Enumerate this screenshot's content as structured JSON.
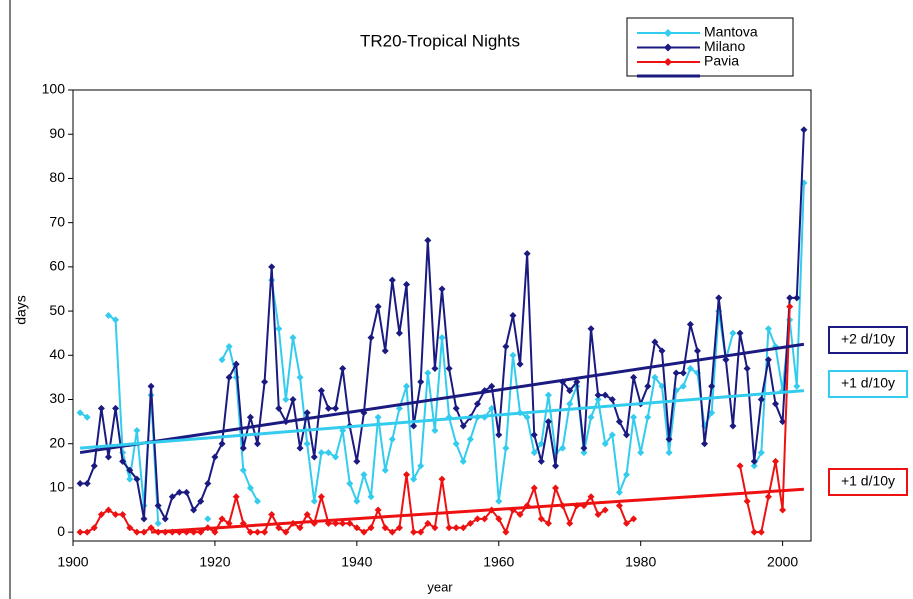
{
  "chart_data": {
    "type": "line",
    "title": "TR20-Tropical Nights",
    "x_label": "year",
    "y_label": "days",
    "xlim": [
      1900,
      2004
    ],
    "ylim": [
      -2,
      100
    ],
    "xticks": [
      1900,
      1920,
      1940,
      1960,
      1980,
      2000
    ],
    "yticks": [
      0,
      10,
      20,
      30,
      40,
      50,
      60,
      70,
      80,
      90,
      100
    ],
    "grid": false,
    "legend": "top-right",
    "x": [
      1901,
      1902,
      1903,
      1904,
      1905,
      1906,
      1907,
      1908,
      1909,
      1910,
      1911,
      1912,
      1913,
      1914,
      1915,
      1916,
      1917,
      1918,
      1919,
      1920,
      1921,
      1922,
      1923,
      1924,
      1925,
      1926,
      1927,
      1928,
      1929,
      1930,
      1931,
      1932,
      1933,
      1934,
      1935,
      1936,
      1937,
      1938,
      1939,
      1940,
      1941,
      1942,
      1943,
      1944,
      1945,
      1946,
      1947,
      1948,
      1949,
      1950,
      1951,
      1952,
      1953,
      1954,
      1955,
      1956,
      1957,
      1958,
      1959,
      1960,
      1961,
      1962,
      1963,
      1964,
      1965,
      1966,
      1967,
      1968,
      1969,
      1970,
      1971,
      1972,
      1973,
      1974,
      1975,
      1976,
      1977,
      1978,
      1979,
      1980,
      1981,
      1982,
      1983,
      1984,
      1985,
      1986,
      1987,
      1988,
      1989,
      1990,
      1991,
      1992,
      1993,
      1994,
      1995,
      1996,
      1997,
      1998,
      1999,
      2000,
      2001,
      2002,
      2003
    ],
    "series": [
      {
        "name": "Mantova",
        "color": "#33ccee",
        "values": [
          27,
          26,
          null,
          null,
          49,
          48,
          18,
          12,
          23,
          6,
          31,
          2,
          null,
          null,
          null,
          null,
          null,
          null,
          3,
          null,
          39,
          42,
          35,
          14,
          10,
          7,
          null,
          57,
          46,
          30,
          44,
          35,
          20,
          7,
          18,
          18,
          17,
          23,
          11,
          7,
          13,
          8,
          26,
          14,
          21,
          28,
          33,
          12,
          15,
          36,
          23,
          44,
          26,
          20,
          16,
          21,
          26,
          26,
          28,
          7,
          19,
          40,
          27,
          26,
          18,
          20,
          31,
          18,
          19,
          29,
          33,
          18,
          26,
          30,
          20,
          22,
          9,
          13,
          26,
          18,
          26,
          35,
          33,
          18,
          32,
          33,
          37,
          36,
          24,
          27,
          50,
          39,
          45,
          null,
          null,
          15,
          18,
          46,
          42,
          32,
          48,
          33,
          79
        ]
      },
      {
        "name": "Milano",
        "color": "#1a1a80",
        "values": [
          11,
          11,
          15,
          28,
          17,
          28,
          16,
          14,
          12,
          3,
          33,
          6,
          3,
          8,
          9,
          9,
          5,
          7,
          11,
          17,
          20,
          35,
          38,
          19,
          26,
          20,
          34,
          60,
          28,
          25,
          30,
          19,
          27,
          17,
          32,
          28,
          28,
          37,
          24,
          16,
          27,
          44,
          51,
          41,
          57,
          45,
          56,
          24,
          34,
          66,
          37,
          55,
          37,
          28,
          24,
          26,
          29,
          32,
          33,
          22,
          42,
          49,
          38,
          63,
          22,
          16,
          25,
          15,
          34,
          32,
          34,
          19,
          46,
          31,
          31,
          30,
          25,
          22,
          35,
          29,
          33,
          43,
          41,
          21,
          36,
          36,
          47,
          41,
          20,
          33,
          53,
          39,
          24,
          45,
          37,
          16,
          30,
          39,
          29,
          25,
          53,
          53,
          91
        ]
      },
      {
        "name": "Pavia",
        "color": "#ee1111",
        "values": [
          0,
          0,
          1,
          4,
          5,
          4,
          4,
          1,
          0,
          0,
          1,
          0,
          0,
          0,
          0,
          0,
          0,
          0,
          1,
          0,
          3,
          2,
          8,
          2,
          0,
          0,
          0,
          4,
          1,
          0,
          2,
          1,
          4,
          2,
          8,
          2,
          2,
          2,
          2,
          1,
          0,
          1,
          5,
          1,
          0,
          1,
          13,
          0,
          0,
          2,
          1,
          12,
          1,
          1,
          1,
          2,
          3,
          3,
          5,
          3,
          0,
          5,
          4,
          6,
          10,
          3,
          2,
          10,
          6,
          2,
          6,
          6,
          8,
          4,
          5,
          null,
          6,
          2,
          3,
          null,
          null,
          null,
          null,
          null,
          null,
          null,
          null,
          null,
          null,
          null,
          null,
          null,
          null,
          15,
          7,
          0,
          0,
          8,
          16,
          5,
          51,
          null,
          null
        ]
      }
    ],
    "trends": [
      {
        "label": "+2 d/10y",
        "color": "#1a1a80",
        "x": [
          1901,
          2003
        ],
        "values": [
          18,
          42.5
        ]
      },
      {
        "label": "+1 d/10y",
        "color": "#33ccee",
        "x": [
          1901,
          2003
        ],
        "values": [
          19,
          32
        ]
      },
      {
        "label": "+1 d/10y",
        "color": "#ee1111",
        "x": [
          1911,
          2003
        ],
        "values": [
          0,
          9.7
        ]
      }
    ]
  }
}
